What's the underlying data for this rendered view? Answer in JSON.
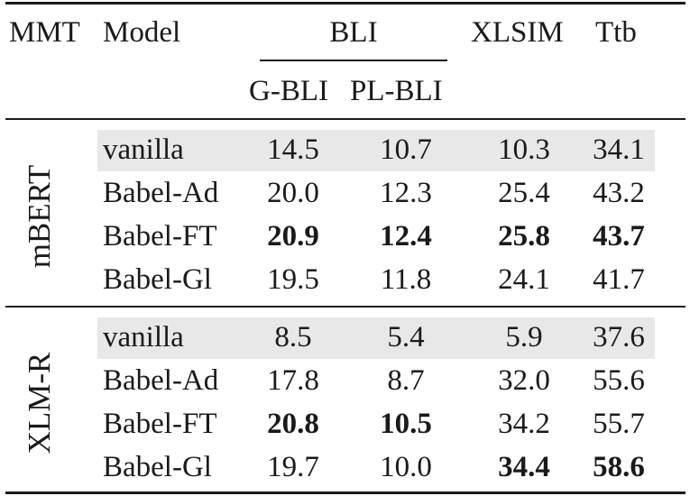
{
  "header": {
    "mmt": "MMT",
    "model": "Model",
    "bli": "BLI",
    "xlsim": "XLSIM",
    "ttb": "Ttb",
    "gbli": "G-BLI",
    "plbli": "PL-BLI"
  },
  "groups": [
    {
      "label": "mBERT",
      "rows": [
        {
          "model": "vanilla",
          "gbli": "14.5",
          "plbli": "10.7",
          "xlsim": "10.3",
          "ttb": "34.1",
          "bold": []
        },
        {
          "model": "Babel-Ad",
          "gbli": "20.0",
          "plbli": "12.3",
          "xlsim": "25.4",
          "ttb": "43.2",
          "bold": []
        },
        {
          "model": "Babel-FT",
          "gbli": "20.9",
          "plbli": "12.4",
          "xlsim": "25.8",
          "ttb": "43.7",
          "bold": [
            "gbli",
            "plbli",
            "xlsim",
            "ttb"
          ]
        },
        {
          "model": "Babel-Gl",
          "gbli": "19.5",
          "plbli": "11.8",
          "xlsim": "24.1",
          "ttb": "41.7",
          "bold": []
        }
      ]
    },
    {
      "label": "XLM-R",
      "rows": [
        {
          "model": "vanilla",
          "gbli": "8.5",
          "plbli": "5.4",
          "xlsim": "5.9",
          "ttb": "37.6",
          "bold": []
        },
        {
          "model": "Babel-Ad",
          "gbli": "17.8",
          "plbli": "8.7",
          "xlsim": "32.0",
          "ttb": "55.6",
          "bold": []
        },
        {
          "model": "Babel-FT",
          "gbli": "20.8",
          "plbli": "10.5",
          "xlsim": "34.2",
          "ttb": "55.7",
          "bold": [
            "gbli",
            "plbli"
          ]
        },
        {
          "model": "Babel-Gl",
          "gbli": "19.7",
          "plbli": "10.0",
          "xlsim": "34.4",
          "ttb": "58.6",
          "bold": [
            "xlsim",
            "ttb"
          ]
        }
      ]
    }
  ]
}
